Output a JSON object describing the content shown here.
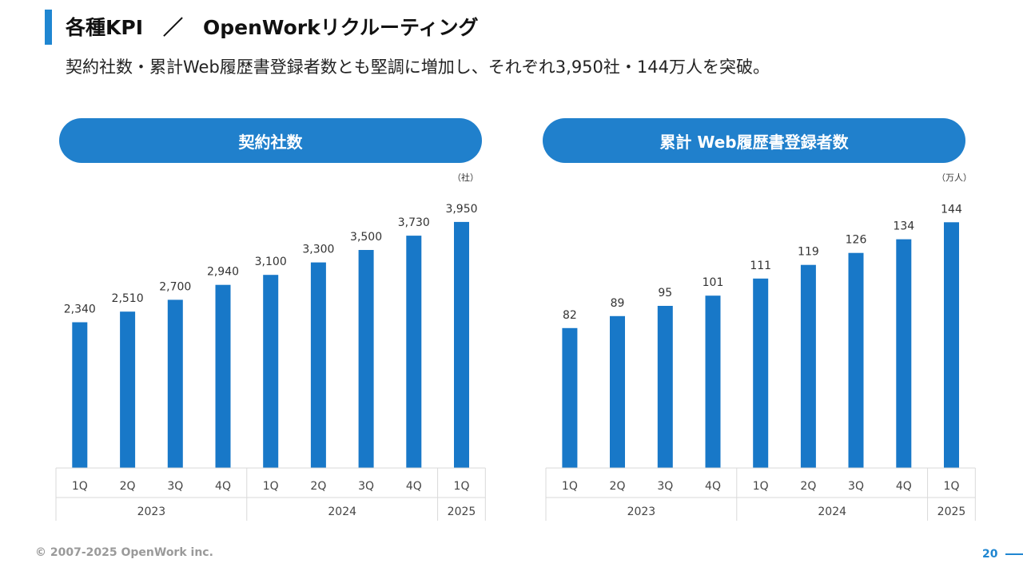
{
  "header": {
    "title": "各種KPI　／　OpenWorkリクルーティング",
    "subtitle": "契約社数・累計Web履歴書登録者数とも堅調に増加し、それぞれ3,950社・144万人を突破。"
  },
  "footer": {
    "copyright": "© 2007-2025 OpenWork inc.",
    "page_number": "20"
  },
  "colors": {
    "accent": "#1f86d1",
    "bar": "#1878c8",
    "pill": "#2080cc"
  },
  "chart_data": [
    {
      "type": "bar",
      "title": "契約社数",
      "unit": "（社）",
      "categories": [
        "1Q",
        "2Q",
        "3Q",
        "4Q",
        "1Q",
        "2Q",
        "3Q",
        "4Q",
        "1Q"
      ],
      "groups": [
        {
          "label": "2023",
          "count": 4
        },
        {
          "label": "2024",
          "count": 4
        },
        {
          "label": "2025",
          "count": 1
        }
      ],
      "values": [
        2340,
        2510,
        2700,
        2940,
        3100,
        3300,
        3500,
        3730,
        3950
      ],
      "labels": [
        "2,340",
        "2,510",
        "2,700",
        "2,940",
        "3,100",
        "3,300",
        "3,500",
        "3,730",
        "3,950"
      ],
      "ylim": [
        0,
        4000
      ]
    },
    {
      "type": "bar",
      "title": "累計 Web履歴書登録者数",
      "unit": "（万人）",
      "categories": [
        "1Q",
        "2Q",
        "3Q",
        "4Q",
        "1Q",
        "2Q",
        "3Q",
        "4Q",
        "1Q"
      ],
      "groups": [
        {
          "label": "2023",
          "count": 4
        },
        {
          "label": "2024",
          "count": 4
        },
        {
          "label": "2025",
          "count": 1
        }
      ],
      "values": [
        82,
        89,
        95,
        101,
        111,
        119,
        126,
        134,
        144
      ],
      "labels": [
        "82",
        "89",
        "95",
        "101",
        "111",
        "119",
        "126",
        "134",
        "144"
      ],
      "ylim": [
        0,
        146
      ]
    }
  ]
}
